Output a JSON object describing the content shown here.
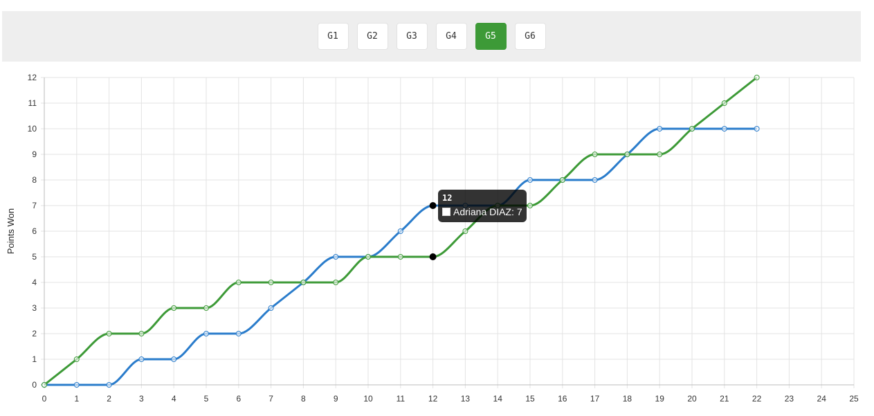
{
  "game_tabs": [
    {
      "label": "G1",
      "active": false
    },
    {
      "label": "G2",
      "active": false
    },
    {
      "label": "G3",
      "active": false
    },
    {
      "label": "G4",
      "active": false
    },
    {
      "label": "G5",
      "active": true
    },
    {
      "label": "G6",
      "active": false
    }
  ],
  "colors": {
    "accent": "#3d9a37",
    "blue": "#2a7ccb",
    "green": "#3d9a37"
  },
  "chart_data": {
    "type": "line",
    "ylabel": "Points Won",
    "xlabel": "",
    "xlim": [
      0,
      25
    ],
    "ylim": [
      0,
      12
    ],
    "grid": true,
    "x_ticks": [
      0,
      1,
      2,
      3,
      4,
      5,
      6,
      7,
      8,
      9,
      10,
      11,
      12,
      13,
      14,
      15,
      16,
      17,
      18,
      19,
      20,
      21,
      22,
      23,
      24,
      25
    ],
    "y_ticks": [
      0,
      1,
      2,
      3,
      4,
      5,
      6,
      7,
      8,
      9,
      10,
      11,
      12
    ],
    "x": [
      0,
      1,
      2,
      3,
      4,
      5,
      6,
      7,
      8,
      9,
      10,
      11,
      12,
      13,
      14,
      15,
      16,
      17,
      18,
      19,
      20,
      21,
      22
    ],
    "series": [
      {
        "color": "#2a7ccb",
        "values": [
          0,
          0,
          0,
          1,
          1,
          2,
          2,
          3,
          4,
          5,
          5,
          6,
          7,
          7,
          7,
          8,
          8,
          8,
          9,
          10,
          10,
          10,
          10
        ]
      },
      {
        "color": "#3d9a37",
        "values": [
          0,
          1,
          2,
          2,
          3,
          3,
          4,
          4,
          4,
          4,
          5,
          5,
          5,
          6,
          7,
          7,
          8,
          9,
          9,
          9,
          10,
          11,
          12
        ]
      }
    ],
    "hover_index": 12,
    "tooltip": {
      "title": "12",
      "label": "Adriana DIAZ: 7"
    }
  }
}
